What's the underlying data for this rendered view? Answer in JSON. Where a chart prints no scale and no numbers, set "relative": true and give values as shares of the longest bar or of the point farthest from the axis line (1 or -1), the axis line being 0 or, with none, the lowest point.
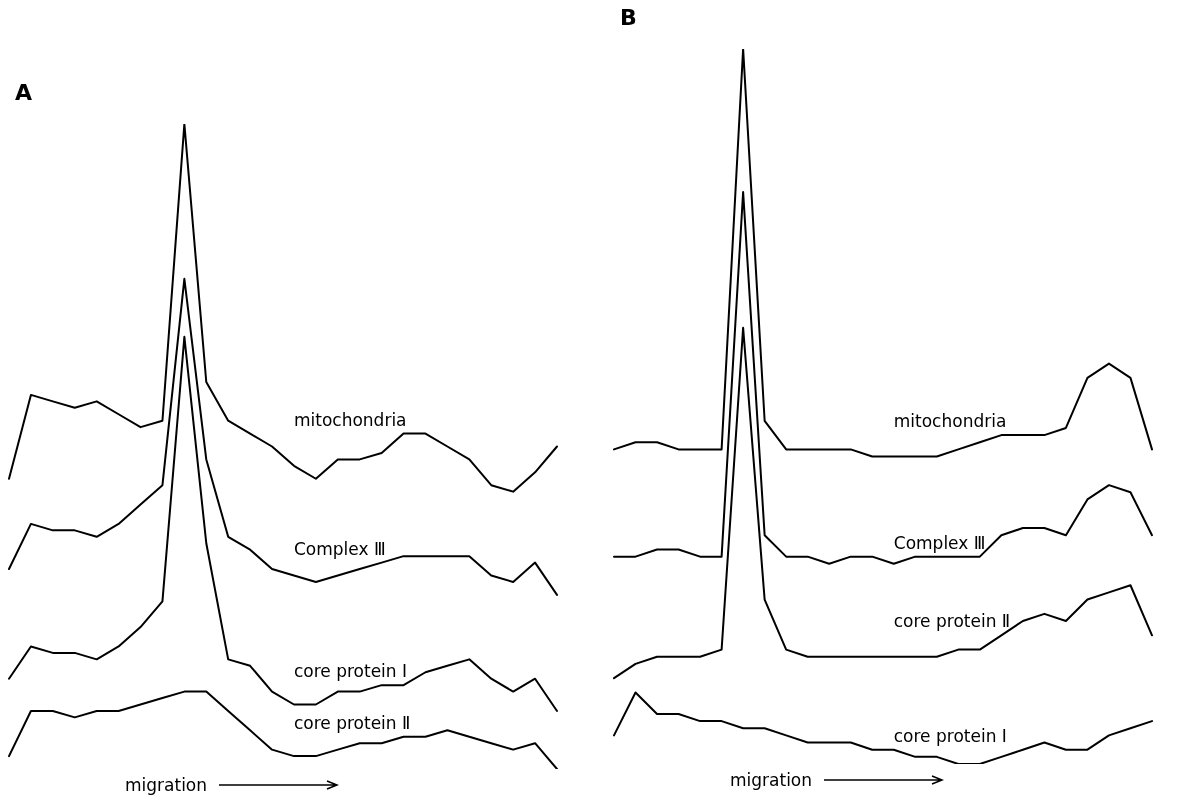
{
  "chart_data": [
    {
      "type": "line",
      "title": "A",
      "xlabel": "migration",
      "relative": true,
      "marker": "none",
      "tick_labels": false,
      "categories": [
        null,
        null,
        null,
        null,
        null,
        null,
        null,
        null,
        null,
        null,
        null,
        null,
        null,
        null,
        null,
        null,
        null,
        null,
        null,
        null,
        null,
        null,
        null,
        null,
        null,
        null
      ],
      "series": [
        {
          "name": "mitochondria",
          "color": "#000000",
          "values": [
            0.45,
            0.58,
            0.57,
            0.56,
            0.57,
            0.55,
            0.53,
            0.54,
            1.0,
            0.6,
            0.54,
            0.52,
            0.5,
            0.47,
            0.45,
            0.48,
            0.48,
            0.49,
            0.52,
            0.52,
            0.5,
            0.48,
            0.44,
            0.43,
            0.46,
            0.5
          ]
        },
        {
          "name": "Complex Ⅲ",
          "color": "#000000",
          "values": [
            0.31,
            0.38,
            0.37,
            0.37,
            0.36,
            0.38,
            0.41,
            0.44,
            0.76,
            0.48,
            0.36,
            0.34,
            0.31,
            0.3,
            0.29,
            0.3,
            0.31,
            0.32,
            0.33,
            0.33,
            0.33,
            0.33,
            0.3,
            0.29,
            0.32,
            0.27
          ]
        },
        {
          "name": "core protein Ⅰ",
          "color": "#000000",
          "values": [
            0.14,
            0.19,
            0.18,
            0.18,
            0.17,
            0.19,
            0.22,
            0.26,
            0.67,
            0.35,
            0.17,
            0.16,
            0.12,
            0.1,
            0.1,
            0.12,
            0.12,
            0.13,
            0.13,
            0.15,
            0.16,
            0.17,
            0.14,
            0.12,
            0.14,
            0.09
          ]
        },
        {
          "name": "core protein Ⅱ",
          "color": "#000000",
          "values": [
            0.02,
            0.09,
            0.09,
            0.08,
            0.09,
            0.09,
            0.1,
            0.11,
            0.12,
            0.12,
            0.09,
            0.06,
            0.03,
            0.02,
            0.02,
            0.03,
            0.04,
            0.04,
            0.05,
            0.05,
            0.06,
            0.05,
            0.04,
            0.03,
            0.04,
            0.0
          ]
        }
      ]
    },
    {
      "type": "line",
      "title": "B",
      "xlabel": "migration",
      "relative": true,
      "marker": "none",
      "tick_labels": false,
      "categories": [
        null,
        null,
        null,
        null,
        null,
        null,
        null,
        null,
        null,
        null,
        null,
        null,
        null,
        null,
        null,
        null,
        null,
        null,
        null,
        null,
        null,
        null,
        null,
        null,
        null,
        null
      ],
      "series": [
        {
          "name": "mitochondria",
          "color": "#000000",
          "values": [
            0.44,
            0.45,
            0.45,
            0.44,
            0.44,
            0.44,
            1.0,
            0.48,
            0.44,
            0.44,
            0.44,
            0.44,
            0.43,
            0.43,
            0.43,
            0.43,
            0.44,
            0.45,
            0.46,
            0.46,
            0.46,
            0.47,
            0.54,
            0.56,
            0.54,
            0.44
          ]
        },
        {
          "name": "Complex Ⅲ",
          "color": "#000000",
          "values": [
            0.29,
            0.29,
            0.3,
            0.3,
            0.29,
            0.29,
            0.8,
            0.32,
            0.29,
            0.29,
            0.28,
            0.29,
            0.29,
            0.28,
            0.29,
            0.29,
            0.29,
            0.29,
            0.32,
            0.33,
            0.33,
            0.32,
            0.37,
            0.39,
            0.38,
            0.32
          ]
        },
        {
          "name": "core protein Ⅱ",
          "color": "#000000",
          "values": [
            0.12,
            0.14,
            0.15,
            0.15,
            0.15,
            0.16,
            0.61,
            0.23,
            0.16,
            0.15,
            0.15,
            0.15,
            0.15,
            0.15,
            0.15,
            0.15,
            0.16,
            0.16,
            0.18,
            0.2,
            0.21,
            0.2,
            0.23,
            0.24,
            0.25,
            0.18
          ]
        },
        {
          "name": "core protein Ⅰ",
          "color": "#000000",
          "values": [
            0.04,
            0.1,
            0.07,
            0.07,
            0.06,
            0.06,
            0.05,
            0.05,
            0.04,
            0.03,
            0.03,
            0.03,
            0.02,
            0.02,
            0.01,
            0.01,
            0.0,
            0.0,
            0.01,
            0.02,
            0.03,
            0.02,
            0.02,
            0.04,
            0.05,
            0.06
          ]
        }
      ]
    }
  ]
}
